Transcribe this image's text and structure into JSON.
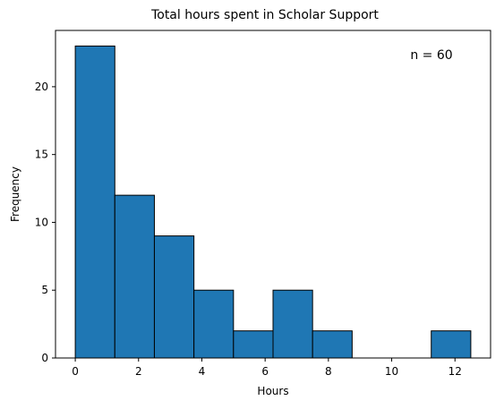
{
  "chart_data": {
    "type": "bar",
    "title": "Total hours spent in Scholar Support",
    "xlabel": "Hours",
    "ylabel": "Frequency",
    "annotation": "n = 60",
    "bins": [
      {
        "x0": 0.0,
        "x1": 1.25,
        "count": 23
      },
      {
        "x0": 1.25,
        "x1": 2.5,
        "count": 12
      },
      {
        "x0": 2.5,
        "x1": 3.75,
        "count": 9
      },
      {
        "x0": 3.75,
        "x1": 5.0,
        "count": 5
      },
      {
        "x0": 5.0,
        "x1": 6.25,
        "count": 2
      },
      {
        "x0": 6.25,
        "x1": 7.5,
        "count": 5
      },
      {
        "x0": 7.5,
        "x1": 8.75,
        "count": 2
      },
      {
        "x0": 8.75,
        "x1": 10.0,
        "count": 0
      },
      {
        "x0": 10.0,
        "x1": 11.25,
        "count": 0
      },
      {
        "x0": 11.25,
        "x1": 12.5,
        "count": 2
      }
    ],
    "xlim": [
      -0.625,
      13.125
    ],
    "ylim": [
      0,
      24.15
    ],
    "xticks": [
      "0",
      "2",
      "4",
      "6",
      "8",
      "10",
      "12"
    ],
    "yticks": [
      "0",
      "5",
      "10",
      "15",
      "20"
    ],
    "grid": false,
    "bar_color": "#1f77b4",
    "edge_color": "#000000"
  }
}
